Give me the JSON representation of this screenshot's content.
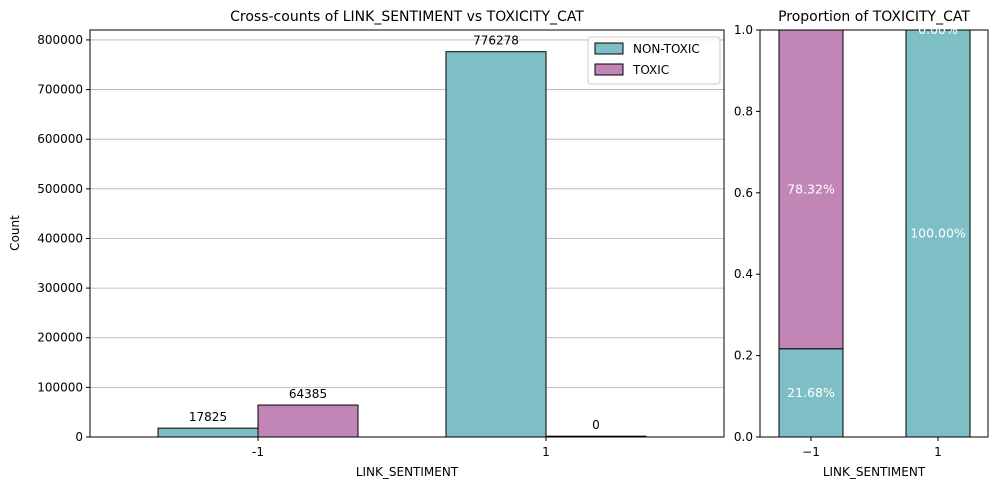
{
  "colors": {
    "non_toxic": "#7ebfc5",
    "toxic": "#c286b6",
    "grid": "#b0b0b0",
    "edge": "#000000"
  },
  "chart_data": [
    {
      "type": "bar",
      "title": "Cross-counts of LINK_SENTIMENT vs TOXICITY_CAT",
      "xlabel": "LINK_SENTIMENT",
      "ylabel": "Count",
      "categories": [
        "-1",
        "1"
      ],
      "ylim": [
        0,
        820000
      ],
      "yticks": [
        "0",
        "100000",
        "200000",
        "300000",
        "400000",
        "500000",
        "600000",
        "700000",
        "800000"
      ],
      "grid": "y",
      "legend": "top-right",
      "series": [
        {
          "name": "NON-TOXIC",
          "values": [
            17825,
            776278
          ],
          "labels": [
            "17825",
            "776278"
          ]
        },
        {
          "name": "TOXIC",
          "values": [
            64385,
            0
          ],
          "labels": [
            "64385",
            "0"
          ]
        }
      ]
    },
    {
      "type": "bar",
      "stacked": true,
      "title": "Proportion of TOXICITY_CAT",
      "xlabel": "LINK_SENTIMENT",
      "ylabel": "",
      "categories": [
        "−1",
        "1"
      ],
      "ylim": [
        0,
        1
      ],
      "yticks": [
        "0.0",
        "0.2",
        "0.4",
        "0.6",
        "0.8",
        "1.0"
      ],
      "series": [
        {
          "name": "NON-TOXIC",
          "values": [
            0.2168,
            1.0
          ],
          "labels": [
            "21.68%",
            "100.00%"
          ]
        },
        {
          "name": "TOXIC",
          "values": [
            0.7832,
            0.0
          ],
          "labels": [
            "78.32%",
            "0.00%"
          ]
        }
      ]
    }
  ]
}
